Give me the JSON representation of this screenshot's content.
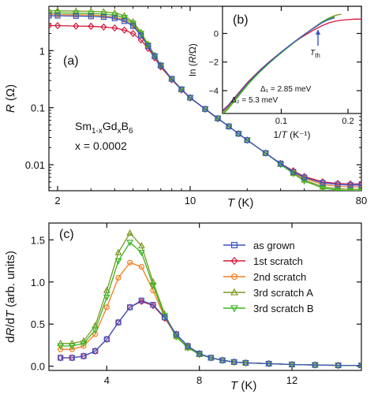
{
  "series_styles": [
    {
      "name": "as grown",
      "color": "#3a54c4",
      "marker": "square"
    },
    {
      "name": "1st scratch",
      "color": "#d4193a",
      "marker": "diamond"
    },
    {
      "name": "2nd scratch",
      "color": "#ef7d1e",
      "marker": "circle"
    },
    {
      "name": "3rd scratch A",
      "color": "#7a9a22",
      "marker": "triangle-up"
    },
    {
      "name": "3rd scratch B",
      "color": "#3ab520",
      "marker": "triangle-down"
    }
  ],
  "annotations": {
    "formula_main": "Sm",
    "formula_sub1": "1-x",
    "formula_mid": "Gd",
    "formula_sub2": "x",
    "formula_end": "B",
    "formula_sub3": "6",
    "concentration": "x = 0.0002",
    "delta1": "Δ₁ = 2.85 meV",
    "delta2": "Δ₂ = 5.3 meV",
    "t_th_main": "T",
    "t_th_sub": "th"
  },
  "chart_data": [
    {
      "panel": "(a)",
      "type": "line",
      "xscale": "log",
      "yscale": "log",
      "xlabel_italic": "T",
      "xlabel_unit": " (K)",
      "ylabel_italic": "R",
      "ylabel_unit": " (Ω)",
      "xlim": [
        1.8,
        80
      ],
      "ylim": [
        0.0035,
        6
      ],
      "xticks": [
        2,
        10,
        80
      ],
      "xtick_labels": [
        "2",
        "10",
        "80"
      ],
      "yticks": [
        0.01,
        0.1,
        1
      ],
      "ytick_labels": [
        "0.01",
        "0.1",
        "1"
      ],
      "series": [
        {
          "x": [
            1.8,
            2,
            2.5,
            3,
            3.5,
            4,
            4.5,
            5,
            5.5,
            6,
            6.5,
            7,
            8,
            9,
            10,
            12,
            14,
            16,
            18,
            20,
            25,
            30,
            35,
            40,
            50,
            60,
            70,
            80
          ],
          "y": [
            4.1,
            4.1,
            4.05,
            4.0,
            3.9,
            3.7,
            3.3,
            2.7,
            1.85,
            1.2,
            0.8,
            0.55,
            0.32,
            0.21,
            0.15,
            0.095,
            0.065,
            0.047,
            0.035,
            0.027,
            0.016,
            0.0105,
            0.0075,
            0.006,
            0.0048,
            0.0045,
            0.0044,
            0.0044
          ]
        },
        {
          "x": [
            1.8,
            2,
            2.5,
            3,
            3.5,
            4,
            4.5,
            5,
            5.5,
            6,
            6.5,
            7,
            8,
            9,
            10,
            12,
            14,
            16,
            18,
            20,
            25,
            30,
            35,
            40,
            50,
            60,
            70,
            80
          ],
          "y": [
            2.75,
            2.75,
            2.7,
            2.68,
            2.6,
            2.5,
            2.3,
            2.0,
            1.55,
            1.1,
            0.75,
            0.52,
            0.31,
            0.205,
            0.148,
            0.094,
            0.064,
            0.047,
            0.035,
            0.027,
            0.016,
            0.0105,
            0.0078,
            0.0062,
            0.005,
            0.0047,
            0.0046,
            0.0046
          ]
        },
        {
          "x": [
            1.8,
            2,
            2.5,
            3,
            3.5,
            4,
            4.5,
            5,
            5.5,
            6,
            6.5,
            7,
            8,
            9,
            10,
            12,
            14,
            16,
            18,
            20,
            25,
            30,
            35,
            40,
            50,
            60,
            70,
            80
          ],
          "y": [
            4.35,
            4.3,
            4.25,
            4.2,
            4.1,
            3.9,
            3.5,
            2.8,
            1.9,
            1.22,
            0.8,
            0.55,
            0.32,
            0.21,
            0.15,
            0.095,
            0.065,
            0.047,
            0.035,
            0.027,
            0.016,
            0.0104,
            0.0074,
            0.0058,
            0.0045,
            0.0042,
            0.0041,
            0.0041
          ]
        },
        {
          "x": [
            1.8,
            2,
            2.5,
            3,
            3.5,
            4,
            4.5,
            5,
            5.5,
            6,
            6.5,
            7,
            8,
            9,
            10,
            12,
            14,
            16,
            18,
            20,
            25,
            30,
            35,
            40,
            50,
            60,
            70,
            80
          ],
          "y": [
            5.0,
            5.0,
            4.95,
            4.9,
            4.8,
            4.6,
            4.1,
            3.2,
            2.1,
            1.3,
            0.83,
            0.56,
            0.32,
            0.21,
            0.15,
            0.095,
            0.065,
            0.047,
            0.035,
            0.027,
            0.016,
            0.0102,
            0.0071,
            0.0054,
            0.0041,
            0.0038,
            0.0037,
            0.0037
          ]
        },
        {
          "x": [
            1.8,
            2,
            2.5,
            3,
            3.5,
            4,
            4.5,
            5,
            5.5,
            6,
            6.5,
            7,
            8,
            9,
            10,
            12,
            14,
            16,
            18,
            20,
            25,
            30,
            35,
            40,
            50,
            60,
            70,
            80
          ],
          "y": [
            4.6,
            4.6,
            4.55,
            4.5,
            4.4,
            4.2,
            3.8,
            3.0,
            2.0,
            1.25,
            0.81,
            0.55,
            0.32,
            0.21,
            0.15,
            0.095,
            0.065,
            0.047,
            0.035,
            0.027,
            0.016,
            0.0101,
            0.007,
            0.0052,
            0.0039,
            0.0036,
            0.0035,
            0.0035
          ]
        }
      ]
    },
    {
      "panel": "(b)",
      "type": "line",
      "inset": true,
      "xlabel_prefix": "1/",
      "xlabel_italic": "T",
      "xlabel_unit": " (K⁻¹)",
      "ylabel_prefix": "ln (",
      "ylabel_italic": "R",
      "ylabel_unit": "/Ω)",
      "xlim": [
        0.012,
        0.22
      ],
      "ylim": [
        -5.6,
        1.9
      ],
      "xticks": [
        0.1,
        0.2
      ],
      "xtick_labels": [
        "0.1",
        "0.2"
      ],
      "yticks": [
        -4,
        -2,
        0
      ],
      "ytick_labels": [
        "−4",
        "−2",
        "0"
      ],
      "arrow_x": 0.155,
      "series": [
        {
          "x": [
            0.0125,
            0.02,
            0.03,
            0.04,
            0.05,
            0.06,
            0.07,
            0.08,
            0.09,
            0.1,
            0.11,
            0.12,
            0.13,
            0.14,
            0.15,
            0.16,
            0.17,
            0.18
          ],
          "y": [
            -5.43,
            -5.1,
            -4.55,
            -4.0,
            -3.45,
            -2.97,
            -2.52,
            -2.1,
            -1.7,
            -1.3,
            -0.93,
            -0.57,
            -0.22,
            0.1,
            0.42,
            0.72,
            0.95,
            1.1
          ]
        },
        {
          "x": [
            0.0125,
            0.02,
            0.03,
            0.04,
            0.05,
            0.06,
            0.07,
            0.08,
            0.09,
            0.1,
            0.11,
            0.12,
            0.13,
            0.14,
            0.15,
            0.16,
            0.17,
            0.18,
            0.19,
            0.2,
            0.21,
            0.22
          ],
          "y": [
            -5.38,
            -5.05,
            -4.5,
            -3.95,
            -3.4,
            -2.93,
            -2.48,
            -2.06,
            -1.68,
            -1.3,
            -0.95,
            -0.6,
            -0.28,
            0.0,
            0.28,
            0.52,
            0.72,
            0.85,
            0.93,
            0.97,
            1.0,
            1.0
          ]
        },
        {
          "x": [
            0.0125,
            0.02,
            0.03,
            0.04,
            0.05,
            0.06,
            0.07,
            0.08,
            0.09,
            0.1,
            0.11,
            0.12,
            0.13,
            0.14,
            0.15,
            0.16,
            0.17,
            0.18
          ],
          "y": [
            -5.49,
            -5.15,
            -4.6,
            -4.05,
            -3.5,
            -3.0,
            -2.55,
            -2.12,
            -1.72,
            -1.33,
            -0.95,
            -0.58,
            -0.23,
            0.1,
            0.43,
            0.75,
            0.98,
            1.15
          ]
        },
        {
          "x": [
            0.0125,
            0.02,
            0.03,
            0.04,
            0.05,
            0.06,
            0.07,
            0.08,
            0.09,
            0.1,
            0.11,
            0.12,
            0.13,
            0.14,
            0.15,
            0.16,
            0.17,
            0.18,
            0.19
          ],
          "y": [
            -5.6,
            -5.25,
            -4.7,
            -4.12,
            -3.56,
            -3.05,
            -2.58,
            -2.15,
            -1.74,
            -1.35,
            -0.97,
            -0.6,
            -0.24,
            0.1,
            0.45,
            0.78,
            1.05,
            1.25,
            1.35
          ]
        },
        {
          "x": [
            0.0125,
            0.02,
            0.03,
            0.04,
            0.05,
            0.06,
            0.07,
            0.08,
            0.09,
            0.1,
            0.11,
            0.12,
            0.13,
            0.14,
            0.15,
            0.16,
            0.17,
            0.18
          ],
          "y": [
            -5.65,
            -5.3,
            -4.73,
            -4.15,
            -3.58,
            -3.07,
            -2.6,
            -2.16,
            -1.75,
            -1.36,
            -0.98,
            -0.6,
            -0.24,
            0.1,
            0.44,
            0.76,
            1.02,
            1.2
          ]
        }
      ]
    },
    {
      "panel": "(c)",
      "type": "line",
      "xlabel_italic": "T",
      "xlabel_unit": " (K)",
      "ylabel_prefix": "d",
      "ylabel_italic": "R",
      "ylabel_mid": "/d",
      "ylabel_italic2": "T",
      "ylabel_unit": " (arb. units)",
      "xlim": [
        1.5,
        15
      ],
      "ylim": [
        -0.05,
        1.7
      ],
      "xticks": [
        4,
        8,
        12
      ],
      "xtick_labels": [
        "4",
        "8",
        "12"
      ],
      "yticks": [
        0,
        0.5,
        1,
        1.5
      ],
      "ytick_labels": [
        "0.0",
        "0.5",
        "1.0",
        "1.5"
      ],
      "legend_position": "upper-right",
      "series": [
        {
          "x": [
            2,
            2.5,
            3,
            3.5,
            4,
            4.5,
            5,
            5.5,
            6,
            6.5,
            7,
            7.5,
            8,
            8.5,
            9,
            9.5,
            10,
            11,
            12,
            13,
            14,
            15
          ],
          "y": [
            0.1,
            0.1,
            0.12,
            0.18,
            0.32,
            0.52,
            0.7,
            0.78,
            0.73,
            0.58,
            0.38,
            0.24,
            0.15,
            0.1,
            0.07,
            0.05,
            0.04,
            0.03,
            0.02,
            0.015,
            0.01,
            0.01
          ]
        },
        {
          "x": [
            2,
            2.5,
            3,
            3.5,
            4,
            4.5,
            5,
            5.5,
            6,
            6.5,
            7,
            7.5,
            8,
            8.5,
            9,
            9.5,
            10,
            11,
            12,
            13,
            14,
            15
          ],
          "y": [
            0.1,
            0.1,
            0.12,
            0.18,
            0.32,
            0.52,
            0.7,
            0.77,
            0.72,
            0.57,
            0.38,
            0.24,
            0.15,
            0.1,
            0.07,
            0.05,
            0.04,
            0.03,
            0.02,
            0.015,
            0.01,
            0.01
          ]
        },
        {
          "x": [
            2,
            2.5,
            3,
            3.5,
            4,
            4.5,
            5,
            5.5,
            6,
            6.5,
            7,
            7.5,
            8,
            8.5,
            9,
            9.5,
            10,
            11,
            12,
            13,
            14,
            15
          ],
          "y": [
            0.2,
            0.2,
            0.24,
            0.38,
            0.7,
            1.05,
            1.23,
            1.18,
            0.9,
            0.58,
            0.35,
            0.22,
            0.14,
            0.1,
            0.07,
            0.05,
            0.04,
            0.03,
            0.02,
            0.015,
            0.01,
            0.01
          ]
        },
        {
          "x": [
            2,
            2.5,
            3,
            3.5,
            4,
            4.5,
            5,
            5.5,
            6,
            6.5,
            7,
            7.5,
            8,
            8.5,
            9,
            9.5,
            10,
            11,
            12,
            13,
            14,
            15
          ],
          "y": [
            0.27,
            0.27,
            0.3,
            0.48,
            0.9,
            1.35,
            1.58,
            1.43,
            1.0,
            0.62,
            0.36,
            0.22,
            0.14,
            0.1,
            0.07,
            0.05,
            0.04,
            0.03,
            0.02,
            0.015,
            0.01,
            0.01
          ]
        },
        {
          "x": [
            2,
            2.5,
            3,
            3.5,
            4,
            4.5,
            5,
            5.5,
            6,
            6.5,
            7,
            7.5,
            8,
            8.5,
            9,
            9.5,
            10,
            11,
            12,
            13,
            14,
            15
          ],
          "y": [
            0.24,
            0.24,
            0.27,
            0.43,
            0.82,
            1.25,
            1.47,
            1.35,
            0.96,
            0.6,
            0.35,
            0.22,
            0.14,
            0.1,
            0.07,
            0.05,
            0.04,
            0.03,
            0.02,
            0.015,
            0.01,
            0.01
          ]
        }
      ]
    }
  ]
}
